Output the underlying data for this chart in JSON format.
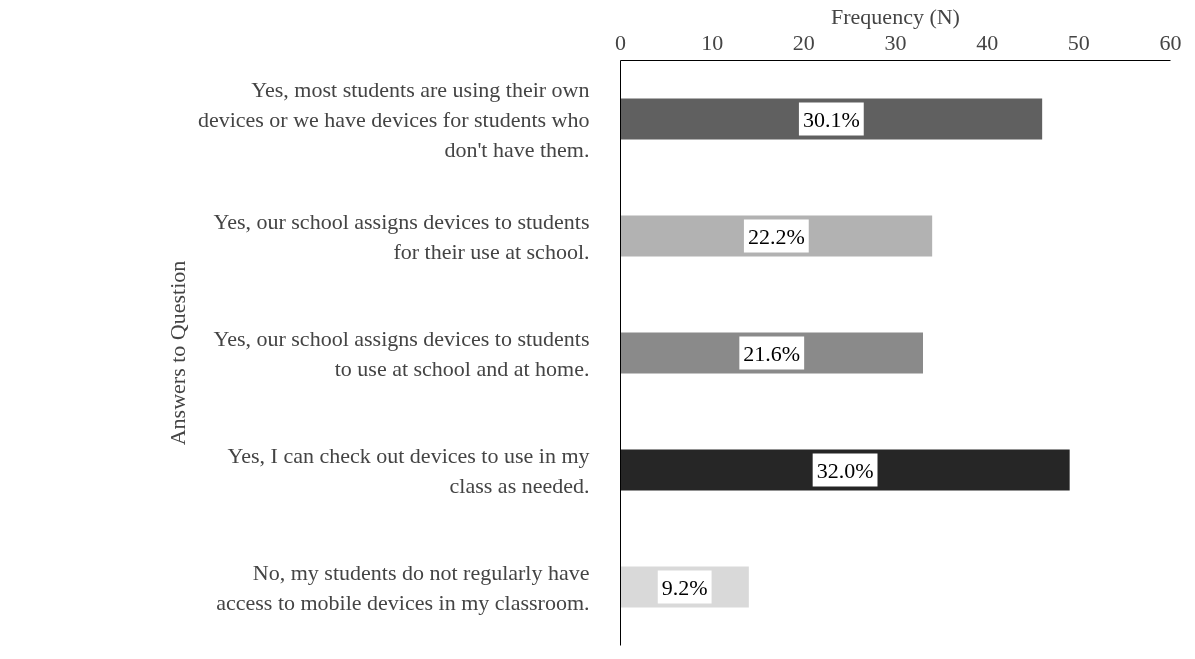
{
  "chart_data": {
    "type": "bar",
    "orientation": "horizontal",
    "xlabel": "Frequency (N)",
    "ylabel": "Answers to Question",
    "categories": [
      "Yes, most students are using their own devices or we have devices for students who don't have them.",
      "Yes, our school assigns devices to students for their use at school.",
      "Yes, our school assigns devices to students to use at school and at home.",
      "Yes, I can check out devices to use in my class as needed.",
      "No, my students do not regularly have access to mobile devices in my classroom."
    ],
    "values": [
      46,
      34,
      33,
      49,
      14
    ],
    "colors": [
      "#606060",
      "#b2b2b2",
      "#8a8a8a",
      "#262626",
      "#d9d9d9"
    ],
    "annotations": [
      "30.1%",
      "22.2%",
      "21.6%",
      "32.0%",
      "9.2%"
    ],
    "xlim": [
      0,
      60
    ],
    "xticks": [
      0,
      10,
      20,
      30,
      40,
      50,
      60
    ],
    "grid": false
  }
}
